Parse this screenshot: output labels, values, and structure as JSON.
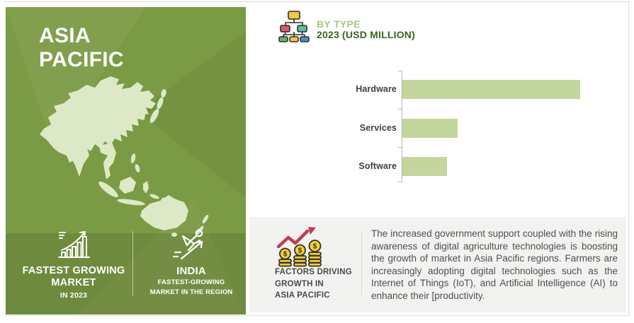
{
  "region_panel": {
    "title_line1": "ASIA",
    "title_line2": "PACIFIC",
    "map": "asia-pacific-silhouette",
    "stats": [
      {
        "icon": "growth-chart-icon",
        "line1": "FASTEST GROWING",
        "line2": "MARKET",
        "line3": "IN 2023"
      },
      {
        "icon": "flying-person-icon",
        "line1": "INDIA",
        "line2": "FASTEST-GROWING",
        "line3": "MARKET IN THE REGION"
      }
    ]
  },
  "chart_header": {
    "icon": "org-chart-icon",
    "title": "BY TYPE",
    "subtitle": "2023 (USD MILLION)"
  },
  "chart_data": {
    "type": "bar",
    "orientation": "horizontal",
    "title": "BY TYPE",
    "subtitle": "2023 (USD MILLION)",
    "categories": [
      "Hardware",
      "Services",
      "Software"
    ],
    "values": [
      100,
      31,
      25
    ],
    "value_note": "no numeric labels or gridlines shown; values are relative units where Hardware = 100",
    "bar_color": "#c3d69b",
    "axis": {
      "y_axis_line": true,
      "gridlines": false,
      "value_labels": false,
      "legend": false
    }
  },
  "factors_section": {
    "icon": "coins-growth-icon",
    "heading_line1": "FACTORS DRIVING",
    "heading_line2": "GROWTH IN",
    "heading_line3": "ASIA PACIFIC",
    "paragraph": "The increased government support coupled with the rising awareness of digital agriculture technologies is boosting the growth of market in Asia Pacific regions. Farmers are increasingly adopting digital technologies such as the Internet of Things (IoT), and Artificial Intelligence (AI) to enhance their [productivity."
  },
  "colors": {
    "panel_green": "#7b9a44",
    "map_light_green": "#dde9c6",
    "bar_green": "#c3d69b",
    "title_light_green": "#a6c87c",
    "title_dark_green": "#39661d",
    "factors_bg": "#f2f2f0",
    "text_dark_gray": "#4f4f4f",
    "arrow_red": "#c13b52",
    "coin_yellow": "#f7d02e"
  }
}
